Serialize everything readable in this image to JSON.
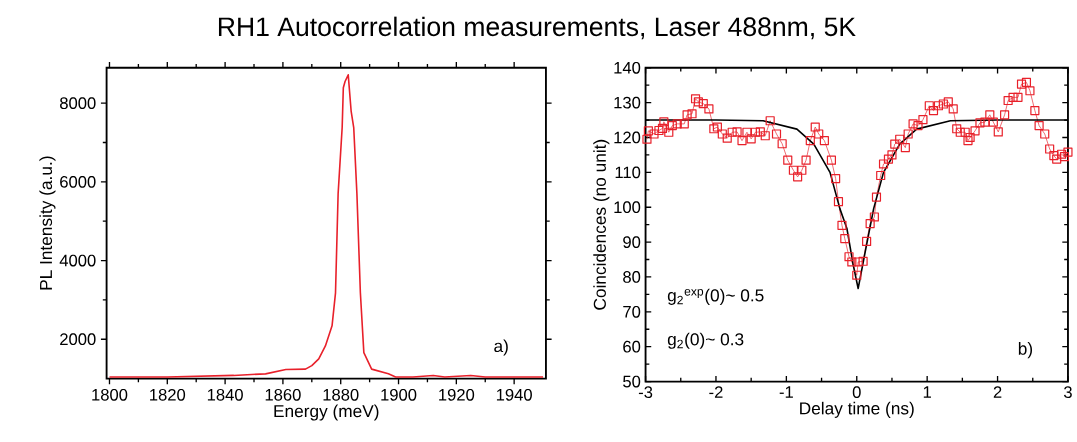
{
  "chart_data": [
    {
      "type": "line",
      "title": "RH1 Autocorrelation measurements, Laser 488nm, 5K",
      "xlabel": "Energy (meV)",
      "ylabel": "PL Intensity (a.u.)",
      "xlim": [
        1799,
        1951
      ],
      "ylim": [
        1000,
        8900
      ],
      "xticks": [
        1800,
        1820,
        1840,
        1860,
        1880,
        1900,
        1920,
        1940
      ],
      "yticks": [
        2000,
        4000,
        6000,
        8000
      ],
      "grid": false,
      "annotations": [
        "a)"
      ],
      "series": [
        {
          "color": "#e8202a",
          "x": [
            1800,
            1820,
            1843,
            1854,
            1861,
            1867.8,
            1870,
            1872.4,
            1874.7,
            1877,
            1878.2,
            1879.1,
            1880.5,
            1880.9,
            1881.5,
            1882.6,
            1883.6,
            1884.5,
            1885.6,
            1886.8,
            1888,
            1890.7,
            1896.5,
            1899,
            1905,
            1912,
            1916,
            1925,
            1930,
            1950
          ],
          "values": [
            1040,
            1040,
            1080,
            1120,
            1230,
            1240,
            1330,
            1500,
            1830,
            2340,
            3180,
            5700,
            7380,
            8390,
            8550,
            8720,
            7800,
            7380,
            5700,
            3180,
            1660,
            1240,
            1120,
            1040,
            1040,
            1080,
            1040,
            1080,
            1040,
            1040
          ]
        }
      ]
    },
    {
      "type": "line",
      "xlabel": "Delay time (ns)",
      "ylabel": "Coincidences (no unit)",
      "xlim": [
        -3,
        3
      ],
      "ylim": [
        50,
        140
      ],
      "xticks": [
        -3,
        -2,
        -1,
        0,
        1,
        2,
        3
      ],
      "yticks": [
        50,
        60,
        70,
        80,
        90,
        100,
        110,
        120,
        130,
        140
      ],
      "grid": false,
      "annotations": [
        "g$_{2}$$^{exp}$(0)~ 0.5",
        "g$_{2}$(0)~ 0.3",
        "b)"
      ],
      "series": [
        {
          "color": "#e8202a",
          "marker": "square",
          "x": [
            -2.98,
            -2.96,
            -2.88,
            -2.81,
            -2.76,
            -2.74,
            -2.67,
            -2.62,
            -2.55,
            -2.45,
            -2.41,
            -2.34,
            -2.29,
            -2.25,
            -2.18,
            -2.1,
            -2.03,
            -1.98,
            -1.91,
            -1.84,
            -1.77,
            -1.7,
            -1.63,
            -1.56,
            -1.5,
            -1.44,
            -1.37,
            -1.3,
            -1.23,
            -1.14,
            -1.06,
            -0.98,
            -0.9,
            -0.84,
            -0.78,
            -0.72,
            -0.66,
            -0.59,
            -0.54,
            -0.46,
            -0.36,
            -0.3,
            -0.26,
            -0.21,
            -0.17,
            -0.11,
            -0.07,
            0.0,
            0.02,
            0.09,
            0.14,
            0.19,
            0.25,
            0.28,
            0.34,
            0.38,
            0.45,
            0.5,
            0.54,
            0.61,
            0.69,
            0.73,
            0.8,
            0.87,
            0.94,
            1.03,
            1.09,
            1.16,
            1.23,
            1.3,
            1.37,
            1.42,
            1.47,
            1.54,
            1.58,
            1.61,
            1.68,
            1.75,
            1.82,
            1.89,
            1.94,
            2.01,
            2.1,
            2.15,
            2.22,
            2.29,
            2.34,
            2.41,
            2.46,
            2.53,
            2.59,
            2.67,
            2.74,
            2.8,
            2.84,
            2.91,
            2.95,
            3.0
          ],
          "values": [
            119.5,
            121.9,
            121,
            122,
            122.6,
            124.5,
            121.5,
            123.4,
            123.9,
            123.9,
            126.5,
            126.8,
            131.1,
            130.2,
            129.7,
            128.2,
            122.5,
            123,
            121,
            119.8,
            121.5,
            121.6,
            119.1,
            121.5,
            119.6,
            121.5,
            121.6,
            120.5,
            124.8,
            121,
            118.2,
            113.5,
            110.6,
            108.7,
            110.6,
            113.5,
            119.1,
            123,
            121,
            119.1,
            113.5,
            108.2,
            101.6,
            94.8,
            91,
            85.8,
            84.3,
            80.5,
            84.3,
            84.5,
            90.2,
            95.3,
            97.2,
            102.9,
            109.1,
            112.4,
            113.8,
            115,
            118.1,
            119.5,
            117.1,
            121,
            123.9,
            123.4,
            125.1,
            129.1,
            127.7,
            129.1,
            129.6,
            130.2,
            128.2,
            122.5,
            121.5,
            121.5,
            119.1,
            120,
            121.9,
            124.2,
            124.4,
            126.5,
            124.4,
            121.6,
            126.5,
            130.6,
            131.5,
            131.5,
            135.3,
            135.8,
            133.4,
            127.7,
            123.4,
            121,
            116.7,
            114.8,
            113.8,
            115.2,
            114.5,
            115.8
          ]
        },
        {
          "color": "#000000",
          "marker": "none",
          "x": [
            -3,
            -2,
            -1.33,
            -0.85,
            -0.61,
            -0.38,
            -0.24,
            -0.14,
            -0.05,
            0.02,
            0.12,
            0.24,
            0.38,
            0.61,
            0.85,
            1.33,
            2,
            3
          ],
          "values": [
            125,
            125,
            124.8,
            122.4,
            118.1,
            110,
            99.6,
            93.9,
            83.4,
            76.7,
            87.2,
            99.6,
            110,
            118.1,
            122.4,
            124.8,
            125,
            125
          ]
        }
      ]
    }
  ]
}
